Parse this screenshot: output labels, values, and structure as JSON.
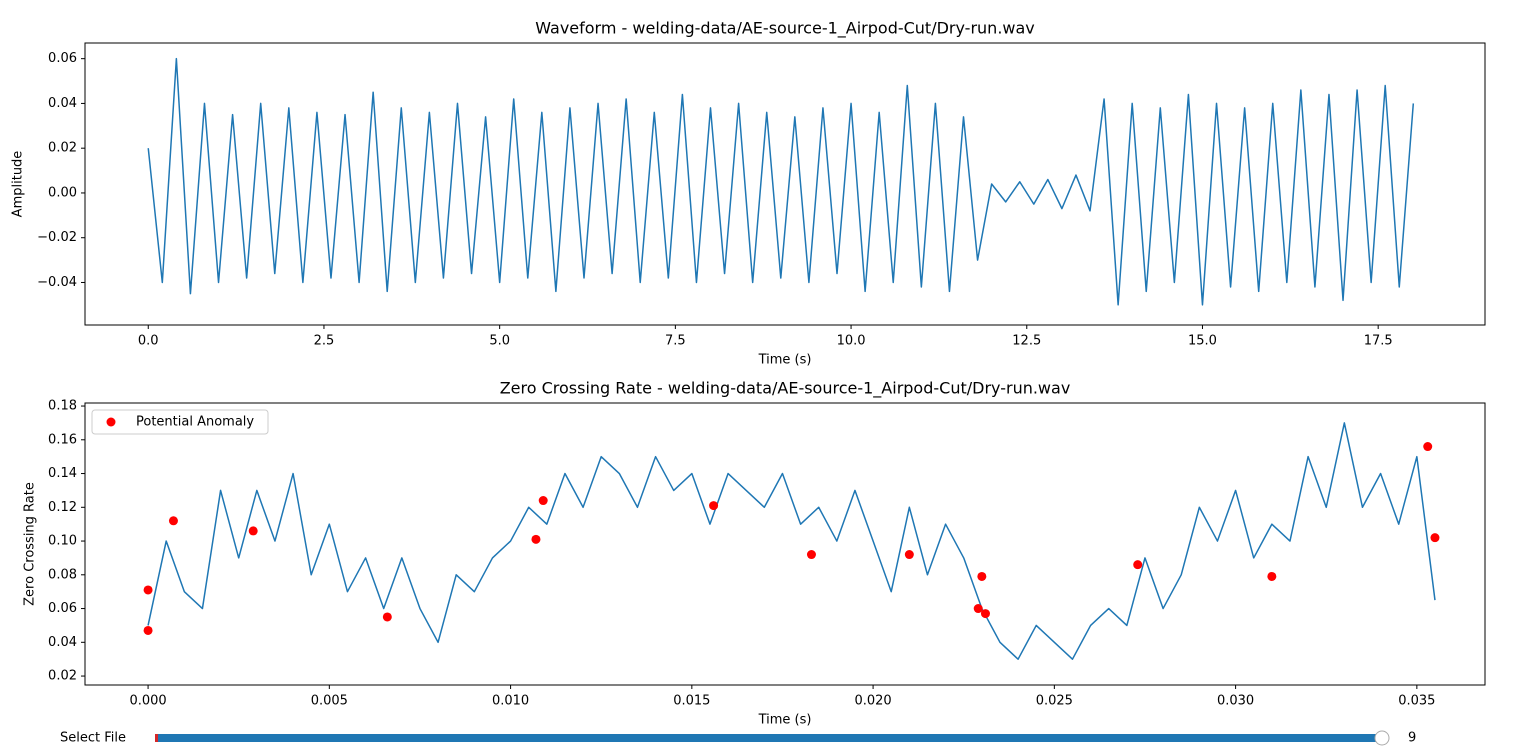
{
  "chart_data": [
    {
      "type": "line",
      "title": "Waveform - welding-data/AE-source-1_Airpod-Cut/Dry-run.wav",
      "xlabel": "Time (s)",
      "ylabel": "Amplitude",
      "color": "#1f77b4",
      "x": [
        0.0,
        0.2,
        0.4,
        0.6,
        0.8,
        1.0,
        1.2,
        1.4,
        1.6,
        1.8,
        2.0,
        2.2,
        2.4,
        2.6,
        2.8,
        3.0,
        3.2,
        3.4,
        3.6,
        3.8,
        4.0,
        4.2,
        4.4,
        4.6,
        4.8,
        5.0,
        5.2,
        5.4,
        5.6,
        5.8,
        6.0,
        6.2,
        6.4,
        6.6,
        6.8,
        7.0,
        7.2,
        7.4,
        7.6,
        7.8,
        8.0,
        8.2,
        8.4,
        8.6,
        8.8,
        9.0,
        9.2,
        9.4,
        9.6,
        9.8,
        10.0,
        10.2,
        10.4,
        10.6,
        10.8,
        11.0,
        11.2,
        11.4,
        11.6,
        11.8,
        12.0,
        12.2,
        12.4,
        12.6,
        12.8,
        13.0,
        13.2,
        13.4,
        13.6,
        13.8,
        14.0,
        14.2,
        14.4,
        14.6,
        14.8,
        15.0,
        15.2,
        15.4,
        15.6,
        15.8,
        16.0,
        16.2,
        16.4,
        16.6,
        16.8,
        17.0,
        17.2,
        17.4,
        17.6,
        17.8,
        18.0
      ],
      "values": [
        0.02,
        -0.04,
        0.06,
        -0.045,
        0.04,
        -0.04,
        0.035,
        -0.038,
        0.04,
        -0.036,
        0.038,
        -0.04,
        0.036,
        -0.038,
        0.035,
        -0.04,
        0.045,
        -0.044,
        0.038,
        -0.04,
        0.036,
        -0.038,
        0.04,
        -0.036,
        0.034,
        -0.04,
        0.042,
        -0.038,
        0.036,
        -0.044,
        0.038,
        -0.038,
        0.04,
        -0.036,
        0.042,
        -0.04,
        0.036,
        -0.038,
        0.044,
        -0.04,
        0.038,
        -0.036,
        0.04,
        -0.04,
        0.036,
        -0.038,
        0.034,
        -0.04,
        0.038,
        -0.036,
        0.04,
        -0.044,
        0.036,
        -0.04,
        0.048,
        -0.042,
        0.04,
        -0.044,
        0.034,
        -0.03,
        0.004,
        -0.004,
        0.005,
        -0.005,
        0.006,
        -0.007,
        0.008,
        -0.008,
        0.042,
        -0.05,
        0.04,
        -0.044,
        0.038,
        -0.04,
        0.044,
        -0.05,
        0.04,
        -0.042,
        0.038,
        -0.044,
        0.04,
        -0.04,
        0.046,
        -0.042,
        0.044,
        -0.048,
        0.046,
        -0.04,
        0.048,
        -0.042,
        0.04
      ],
      "xlim": [
        -0.9,
        19.02
      ],
      "ylim": [
        -0.059,
        0.067
      ],
      "xticks": [
        {
          "value": 0,
          "label": "0.0"
        },
        2.5,
        {
          "value": 5,
          "label": "5.0"
        },
        7.5,
        {
          "value": 10,
          "label": "10.0"
        },
        12.5,
        {
          "value": 15,
          "label": "15.0"
        },
        17.5
      ],
      "yticks": [
        {
          "value": -0.04,
          "label": "−0.04"
        },
        {
          "value": -0.02,
          "label": "−0.02"
        },
        {
          "value": 0,
          "label": "0.00"
        },
        0.02,
        0.04,
        0.06
      ]
    },
    {
      "type": "line",
      "title": "Zero Crossing Rate - welding-data/AE-source-1_Airpod-Cut/Dry-run.wav",
      "xlabel": "Time (s)",
      "ylabel": "Zero Crossing Rate",
      "color": "#1f77b4",
      "x": [
        0.0,
        0.0005,
        0.001,
        0.0015,
        0.002,
        0.0025,
        0.003,
        0.0035,
        0.004,
        0.0045,
        0.005,
        0.0055,
        0.006,
        0.0065,
        0.007,
        0.0075,
        0.008,
        0.0085,
        0.009,
        0.0095,
        0.01,
        0.0105,
        0.011,
        0.0115,
        0.012,
        0.0125,
        0.013,
        0.0135,
        0.014,
        0.0145,
        0.015,
        0.0155,
        0.016,
        0.0165,
        0.017,
        0.0175,
        0.018,
        0.0185,
        0.019,
        0.0195,
        0.02,
        0.0205,
        0.021,
        0.0215,
        0.022,
        0.0225,
        0.023,
        0.0235,
        0.024,
        0.0245,
        0.025,
        0.0255,
        0.026,
        0.0265,
        0.027,
        0.0275,
        0.028,
        0.0285,
        0.029,
        0.0295,
        0.03,
        0.0305,
        0.031,
        0.0315,
        0.032,
        0.0325,
        0.033,
        0.0335,
        0.034,
        0.0345,
        0.035,
        0.0355
      ],
      "values": [
        0.05,
        0.1,
        0.07,
        0.06,
        0.13,
        0.09,
        0.13,
        0.1,
        0.14,
        0.08,
        0.11,
        0.07,
        0.09,
        0.06,
        0.09,
        0.06,
        0.04,
        0.08,
        0.07,
        0.09,
        0.1,
        0.12,
        0.11,
        0.14,
        0.12,
        0.15,
        0.14,
        0.12,
        0.15,
        0.13,
        0.14,
        0.11,
        0.14,
        0.13,
        0.12,
        0.14,
        0.11,
        0.12,
        0.1,
        0.13,
        0.1,
        0.07,
        0.12,
        0.08,
        0.11,
        0.09,
        0.06,
        0.04,
        0.03,
        0.05,
        0.04,
        0.03,
        0.05,
        0.06,
        0.05,
        0.09,
        0.06,
        0.08,
        0.12,
        0.1,
        0.13,
        0.09,
        0.11,
        0.1,
        0.15,
        0.12,
        0.17,
        0.12,
        0.14,
        0.11,
        0.15,
        0.065
      ],
      "anomalies": {
        "name": "Potential Anomaly",
        "color": "#ff0000",
        "x": [
          0.0,
          0.0,
          0.0007,
          0.0029,
          0.0066,
          0.0107,
          0.0109,
          0.0156,
          0.0183,
          0.021,
          0.0229,
          0.023,
          0.0231,
          0.0273,
          0.031,
          0.0353,
          0.0355
        ],
        "values": [
          0.071,
          0.047,
          0.112,
          0.106,
          0.055,
          0.101,
          0.124,
          0.121,
          0.092,
          0.092,
          0.06,
          0.079,
          0.057,
          0.086,
          0.079,
          0.156,
          0.102
        ]
      },
      "legend": "upper left",
      "xlim": [
        -0.00174,
        0.03688
      ],
      "ylim": [
        0.0147,
        0.1818
      ],
      "xticks": [
        {
          "value": 0,
          "label": "0.000"
        },
        0.005,
        {
          "value": 0.01,
          "label": "0.010"
        },
        0.015,
        {
          "value": 0.02,
          "label": "0.020"
        },
        0.025,
        {
          "value": 0.03,
          "label": "0.030"
        },
        0.035
      ],
      "yticks": [
        0.02,
        0.04,
        0.06,
        0.08,
        {
          "value": 0.1,
          "label": "0.10"
        },
        0.12,
        0.14,
        0.16,
        0.18
      ]
    }
  ],
  "slider": {
    "label": "Select File",
    "value": 9
  }
}
